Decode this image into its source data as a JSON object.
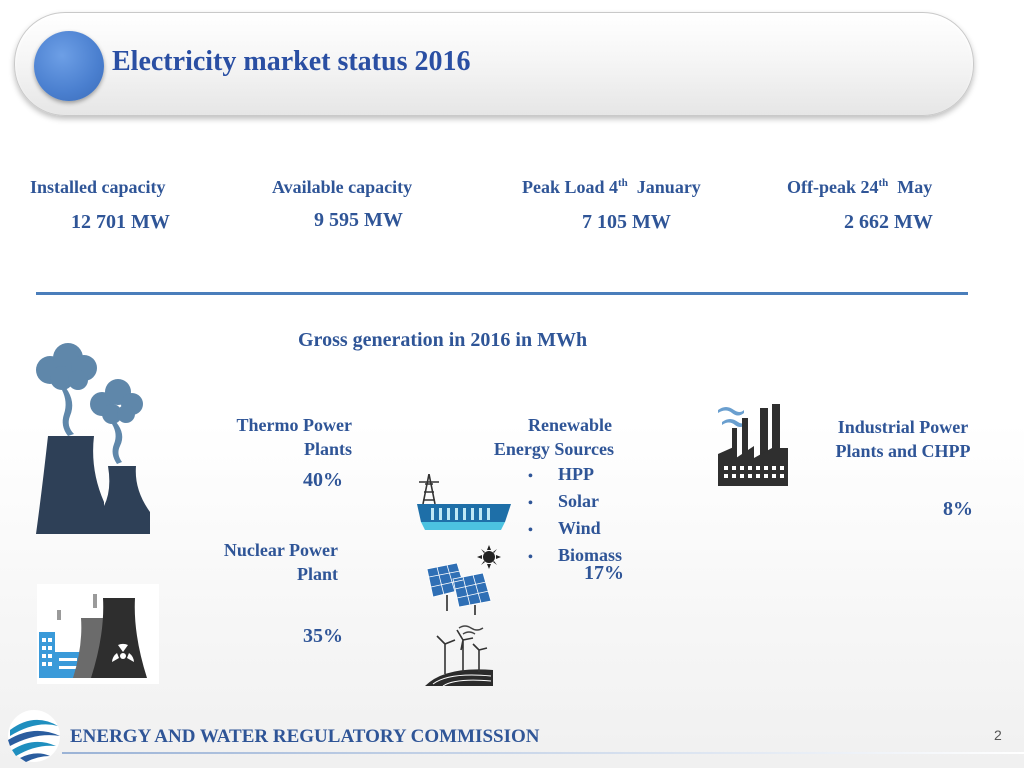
{
  "header": {
    "title": "Electricity market status 2016"
  },
  "stats": [
    {
      "label": "Installed capacity",
      "value": "12 701 MW"
    },
    {
      "label": "Available capacity",
      "value": "9 595 MW"
    },
    {
      "label_pre": "Peak Load 4",
      "label_sup": "th",
      "label_post": "January",
      "value": "7 105 MW"
    },
    {
      "label_pre": "Off-peak 24",
      "label_sup": "th",
      "label_post": "May",
      "value": "2 662 MW"
    }
  ],
  "generation": {
    "title": "Gross generation in 2016 in MWh",
    "thermo": {
      "line1": "Thermo Power",
      "line2": "Plants",
      "pct": "40%"
    },
    "nuclear": {
      "line1": "Nuclear Power",
      "line2": "Plant",
      "pct": "35%"
    },
    "renewable": {
      "line1": "Renewable",
      "line2": "Energy Sources",
      "items": [
        "HPP",
        "Solar",
        "Wind",
        "Biomass"
      ],
      "pct": "17%"
    },
    "industrial": {
      "line1": "Industrial Power",
      "line2": "Plants and CHPP",
      "pct": "8%"
    }
  },
  "footer": {
    "org": "ENERGY AND WATER REGULATORY COMMISSION",
    "page": "2"
  },
  "colors": {
    "text": "#2f5597",
    "title": "#2a4fa3",
    "rule": "#4a7ebb",
    "icon_dark": "#2e4057",
    "icon_smoke": "#5f87aa"
  },
  "icons": [
    "power-plant-smoke-icon",
    "nuclear-plant-icon",
    "hydro-dam-icon",
    "solar-panel-icon",
    "wind-turbine-icon",
    "factory-icon",
    "commission-logo-icon"
  ]
}
